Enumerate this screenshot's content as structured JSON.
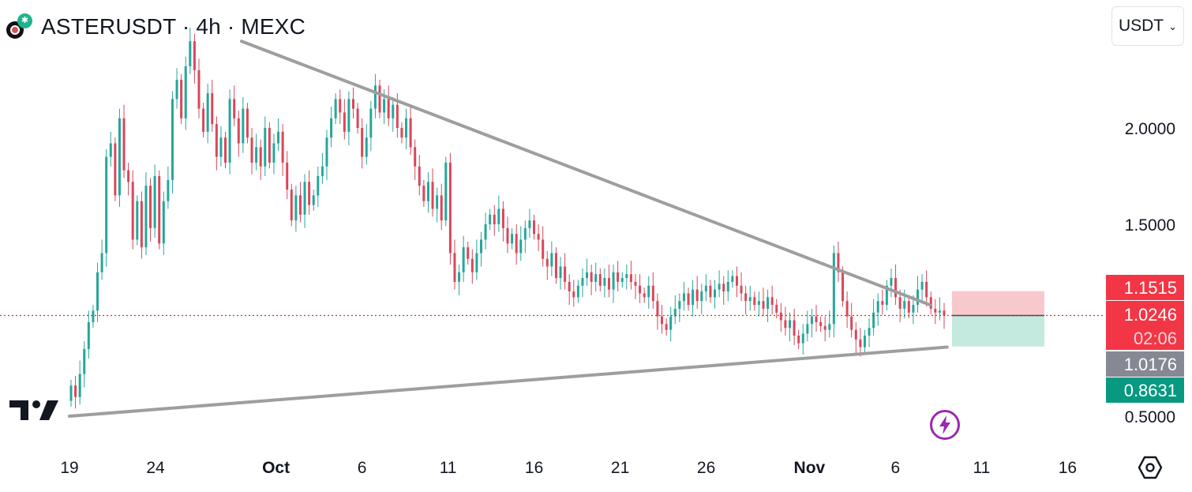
{
  "header": {
    "title": "ASTERUSDT · 4h · MEXC",
    "currency": "USDT"
  },
  "price_labels": [
    {
      "text": "1.1515",
      "bg": "#f23645",
      "fg": "#ffffff"
    },
    {
      "text": "1.0246",
      "bg": "#f23645",
      "fg": "#ffffff"
    },
    {
      "text": "02:06",
      "bg": "#f23645",
      "fg": "#ffd6da"
    },
    {
      "text": "1.0176",
      "bg": "#868993",
      "fg": "#ffffff"
    },
    {
      "text": "0.8631",
      "bg": "#089981",
      "fg": "#ffffff"
    }
  ],
  "colors": {
    "up": "#26a69a",
    "down": "#d9475a",
    "trendline": "#9e9e9e",
    "price_line": "#c0392b",
    "risk_zone": "#f7c9cd",
    "reward_zone": "#c4e9df",
    "bolt": "#9c27b0"
  },
  "icons": {
    "bolt": "lightning-icon",
    "settings": "settings-hexagon-icon",
    "brand": "tradingview-logo"
  },
  "chart_data": {
    "type": "candlestick",
    "symbol": "ASTERUSDT",
    "timeframe": "4h",
    "exchange": "MEXC",
    "y_ticks": [
      2.0,
      1.5,
      0.5
    ],
    "y_tick_labels": [
      "2.0000",
      "1.5000",
      "0.5000"
    ],
    "x_tick_labels": [
      {
        "label": "19",
        "date": "2025-09-19"
      },
      {
        "label": "24",
        "date": "2025-09-24"
      },
      {
        "label": "Oct",
        "date": "2025-10-01",
        "bold": true
      },
      {
        "label": "6",
        "date": "2025-10-06"
      },
      {
        "label": "11",
        "date": "2025-10-11"
      },
      {
        "label": "16",
        "date": "2025-10-16"
      },
      {
        "label": "21",
        "date": "2025-10-21"
      },
      {
        "label": "26",
        "date": "2025-10-26"
      },
      {
        "label": "Nov",
        "date": "2025-11-01",
        "bold": true
      },
      {
        "label": "6",
        "date": "2025-11-06"
      },
      {
        "label": "11",
        "date": "2025-11-11"
      },
      {
        "label": "16",
        "date": "2025-11-16"
      }
    ],
    "last_price": 1.0246,
    "countdown": "02:06",
    "position": {
      "entry": 1.0246,
      "stop": 1.1515,
      "target": 0.8631
    },
    "mid_label": 1.0176,
    "trendlines": [
      {
        "name": "upper",
        "from": {
          "date": "2025-09-29",
          "price": 2.45
        },
        "to": {
          "date": "2025-11-08",
          "price": 1.08
        }
      },
      {
        "name": "lower",
        "from": {
          "date": "2025-09-19",
          "price": 0.5
        },
        "to": {
          "date": "2025-11-09",
          "price": 0.86
        }
      }
    ],
    "candles": [
      [
        0.58,
        0.66
      ],
      [
        0.66,
        0.6
      ],
      [
        0.6,
        0.72
      ],
      [
        0.72,
        0.85
      ],
      [
        0.85,
        0.99
      ],
      [
        0.99,
        1.05
      ],
      [
        1.05,
        1.25
      ],
      [
        1.25,
        1.35
      ],
      [
        1.35,
        1.85
      ],
      [
        1.85,
        1.92
      ],
      [
        1.92,
        1.65
      ],
      [
        1.65,
        2.05
      ],
      [
        2.05,
        1.78
      ],
      [
        1.78,
        1.72
      ],
      [
        1.72,
        1.42
      ],
      [
        1.42,
        1.62
      ],
      [
        1.62,
        1.38
      ],
      [
        1.38,
        1.7
      ],
      [
        1.7,
        1.48
      ],
      [
        1.48,
        1.75
      ],
      [
        1.75,
        1.4
      ],
      [
        1.4,
        1.62
      ],
      [
        1.62,
        1.73
      ],
      [
        1.73,
        2.15
      ],
      [
        2.15,
        2.25
      ],
      [
        2.25,
        2.05
      ],
      [
        2.05,
        2.32
      ],
      [
        2.32,
        2.45
      ],
      [
        2.45,
        2.3
      ],
      [
        2.3,
        2.1
      ],
      [
        2.1,
        1.98
      ],
      [
        1.98,
        2.18
      ],
      [
        2.18,
        2.02
      ],
      [
        2.02,
        1.85
      ],
      [
        1.85,
        1.95
      ],
      [
        1.95,
        1.82
      ],
      [
        1.82,
        2.15
      ],
      [
        2.15,
        2.05
      ],
      [
        2.05,
        1.92
      ],
      [
        1.92,
        2.1
      ],
      [
        2.1,
        1.95
      ],
      [
        1.95,
        1.82
      ],
      [
        1.82,
        1.9
      ],
      [
        1.9,
        1.8
      ],
      [
        1.8,
        2.0
      ],
      [
        2.0,
        1.82
      ],
      [
        1.82,
        1.92
      ],
      [
        1.92,
        1.98
      ],
      [
        1.98,
        1.82
      ],
      [
        1.82,
        1.68
      ],
      [
        1.68,
        1.52
      ],
      [
        1.52,
        1.65
      ],
      [
        1.65,
        1.55
      ],
      [
        1.55,
        1.72
      ],
      [
        1.72,
        1.6
      ],
      [
        1.6,
        1.65
      ],
      [
        1.65,
        1.75
      ],
      [
        1.75,
        1.8
      ],
      [
        1.8,
        1.95
      ],
      [
        1.95,
        2.05
      ],
      [
        2.05,
        2.15
      ],
      [
        2.15,
        2.08
      ],
      [
        2.08,
        1.98
      ],
      [
        1.98,
        2.15
      ],
      [
        2.15,
        2.1
      ],
      [
        2.1,
        2.0
      ],
      [
        2.0,
        1.85
      ],
      [
        1.85,
        1.95
      ],
      [
        1.95,
        2.1
      ],
      [
        2.1,
        2.22
      ],
      [
        2.22,
        2.08
      ],
      [
        2.08,
        2.15
      ],
      [
        2.15,
        2.05
      ],
      [
        2.05,
        2.12
      ],
      [
        2.12,
        2.0
      ],
      [
        2.0,
        1.95
      ],
      [
        1.95,
        2.05
      ],
      [
        2.05,
        1.9
      ],
      [
        1.9,
        1.8
      ],
      [
        1.8,
        1.7
      ],
      [
        1.7,
        1.62
      ],
      [
        1.62,
        1.72
      ],
      [
        1.72,
        1.58
      ],
      [
        1.58,
        1.65
      ],
      [
        1.65,
        1.52
      ],
      [
        1.52,
        1.82
      ],
      [
        1.82,
        1.35
      ],
      [
        1.35,
        1.2
      ],
      [
        1.2,
        1.25
      ],
      [
        1.25,
        1.38
      ],
      [
        1.38,
        1.32
      ],
      [
        1.32,
        1.25
      ],
      [
        1.25,
        1.35
      ],
      [
        1.35,
        1.42
      ],
      [
        1.42,
        1.5
      ],
      [
        1.5,
        1.55
      ],
      [
        1.55,
        1.5
      ],
      [
        1.5,
        1.58
      ],
      [
        1.58,
        1.48
      ],
      [
        1.48,
        1.4
      ],
      [
        1.4,
        1.45
      ],
      [
        1.45,
        1.35
      ],
      [
        1.35,
        1.42
      ],
      [
        1.42,
        1.48
      ],
      [
        1.48,
        1.52
      ],
      [
        1.52,
        1.45
      ],
      [
        1.45,
        1.42
      ],
      [
        1.42,
        1.32
      ],
      [
        1.32,
        1.28
      ],
      [
        1.28,
        1.35
      ],
      [
        1.35,
        1.22
      ],
      [
        1.22,
        1.28
      ],
      [
        1.28,
        1.2
      ],
      [
        1.2,
        1.15
      ],
      [
        1.15,
        1.12
      ],
      [
        1.12,
        1.18
      ],
      [
        1.18,
        1.22
      ],
      [
        1.22,
        1.25
      ],
      [
        1.25,
        1.2
      ],
      [
        1.2,
        1.24
      ],
      [
        1.24,
        1.18
      ],
      [
        1.18,
        1.22
      ],
      [
        1.22,
        1.16
      ],
      [
        1.16,
        1.25
      ],
      [
        1.25,
        1.2
      ],
      [
        1.2,
        1.22
      ],
      [
        1.22,
        1.24
      ],
      [
        1.24,
        1.2
      ],
      [
        1.2,
        1.18
      ],
      [
        1.18,
        1.14
      ],
      [
        1.14,
        1.12
      ],
      [
        1.12,
        1.18
      ],
      [
        1.18,
        1.1
      ],
      [
        1.1,
        1.02
      ],
      [
        1.02,
        0.98
      ],
      [
        0.98,
        0.95
      ],
      [
        0.95,
        1.02
      ],
      [
        1.02,
        1.06
      ],
      [
        1.06,
        1.1
      ],
      [
        1.1,
        1.14
      ],
      [
        1.14,
        1.08
      ],
      [
        1.08,
        1.16
      ],
      [
        1.16,
        1.1
      ],
      [
        1.1,
        1.15
      ],
      [
        1.15,
        1.18
      ],
      [
        1.18,
        1.12
      ],
      [
        1.12,
        1.16
      ],
      [
        1.16,
        1.19
      ],
      [
        1.19,
        1.15
      ],
      [
        1.15,
        1.2
      ],
      [
        1.2,
        1.23
      ],
      [
        1.23,
        1.18
      ],
      [
        1.18,
        1.14
      ],
      [
        1.14,
        1.1
      ],
      [
        1.1,
        1.12
      ],
      [
        1.12,
        1.08
      ],
      [
        1.08,
        1.1
      ],
      [
        1.1,
        1.06
      ],
      [
        1.06,
        1.12
      ],
      [
        1.12,
        1.08
      ],
      [
        1.08,
        1.04
      ],
      [
        1.04,
        1.0
      ],
      [
        1.0,
        0.96
      ],
      [
        0.96,
        1.0
      ],
      [
        1.0,
        0.92
      ],
      [
        0.92,
        0.88
      ],
      [
        0.88,
        0.93
      ],
      [
        0.93,
        0.98
      ],
      [
        0.98,
        1.02
      ],
      [
        1.02,
        0.99
      ],
      [
        0.99,
        0.97
      ],
      [
        0.97,
        0.95
      ],
      [
        0.95,
        0.98
      ],
      [
        0.98,
        1.35
      ],
      [
        1.35,
        1.25
      ],
      [
        1.25,
        1.1
      ],
      [
        1.1,
        1.02
      ],
      [
        1.02,
        0.95
      ],
      [
        0.95,
        0.9
      ],
      [
        0.9,
        0.86
      ],
      [
        0.86,
        0.92
      ],
      [
        0.92,
        0.96
      ],
      [
        0.96,
        1.04
      ],
      [
        1.04,
        1.1
      ],
      [
        1.1,
        1.08
      ],
      [
        1.08,
        1.18
      ],
      [
        1.18,
        1.22
      ],
      [
        1.22,
        1.12
      ],
      [
        1.12,
        1.06
      ],
      [
        1.06,
        1.1
      ],
      [
        1.1,
        1.04
      ],
      [
        1.04,
        1.08
      ],
      [
        1.08,
        1.16
      ],
      [
        1.16,
        1.2
      ],
      [
        1.2,
        1.12
      ],
      [
        1.12,
        1.06
      ],
      [
        1.06,
        1.04
      ],
      [
        1.04,
        1.05
      ],
      [
        1.05,
        1.0246
      ]
    ]
  }
}
